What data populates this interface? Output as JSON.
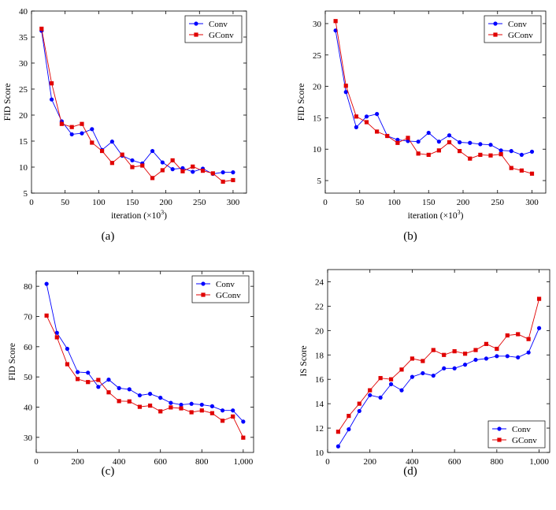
{
  "chart_data": [
    {
      "type": "line",
      "caption": "(a)",
      "xlabel": "iteration (×10",
      "xlabel_sup": "3",
      "xlabel_close": ")",
      "ylabel": "FID Score",
      "xlim": [
        0,
        320
      ],
      "ylim": [
        5,
        40
      ],
      "xticks": [
        0,
        50,
        100,
        150,
        200,
        250,
        300
      ],
      "xtick_labels": [
        "0",
        "50",
        "100",
        "150",
        "200",
        "250",
        "300"
      ],
      "yticks": [
        5,
        10,
        15,
        20,
        25,
        30,
        35,
        40
      ],
      "ytick_labels": [
        "5",
        "10",
        "15",
        "20",
        "25",
        "30",
        "35",
        "40"
      ],
      "legend_position": "top-right",
      "series": [
        {
          "name": "Conv",
          "color": "#0000ff",
          "marker": "circle",
          "x": [
            15,
            30,
            45,
            60,
            75,
            90,
            105,
            120,
            135,
            150,
            165,
            180,
            195,
            210,
            225,
            240,
            255,
            270,
            285,
            300
          ],
          "y": [
            36.2,
            23.0,
            18.8,
            16.3,
            16.5,
            17.3,
            13.3,
            14.9,
            12.2,
            11.3,
            10.7,
            13.1,
            10.9,
            9.6,
            9.8,
            9.1,
            9.7,
            8.7,
            9.0,
            9.0
          ]
        },
        {
          "name": "GConv",
          "color": "#e00000",
          "marker": "square",
          "x": [
            15,
            30,
            45,
            60,
            75,
            90,
            105,
            120,
            135,
            150,
            165,
            180,
            195,
            210,
            225,
            240,
            255,
            270,
            285,
            300
          ],
          "y": [
            36.6,
            26.1,
            18.3,
            17.7,
            18.3,
            14.7,
            13.1,
            10.8,
            12.4,
            10.0,
            10.3,
            7.9,
            9.4,
            11.3,
            9.2,
            10.1,
            9.3,
            8.8,
            7.2,
            7.5
          ]
        }
      ]
    },
    {
      "type": "line",
      "caption": "(b)",
      "xlabel": "iteration (×10",
      "xlabel_sup": "3",
      "xlabel_close": ")",
      "ylabel": "FID Score",
      "xlim": [
        0,
        320
      ],
      "ylim": [
        3,
        32
      ],
      "xticks": [
        0,
        50,
        100,
        150,
        200,
        250,
        300
      ],
      "xtick_labels": [
        "0",
        "50",
        "100",
        "150",
        "200",
        "250",
        "300"
      ],
      "yticks": [
        5,
        10,
        15,
        20,
        25,
        30
      ],
      "ytick_labels": [
        "5",
        "10",
        "15",
        "20",
        "25",
        "30"
      ],
      "legend_position": "top-right",
      "series": [
        {
          "name": "Conv",
          "color": "#0000ff",
          "marker": "circle",
          "x": [
            15,
            30,
            45,
            60,
            75,
            90,
            105,
            120,
            135,
            150,
            165,
            180,
            195,
            210,
            225,
            240,
            255,
            270,
            285,
            300
          ],
          "y": [
            28.9,
            19.1,
            13.5,
            15.2,
            15.6,
            12.1,
            11.5,
            11.3,
            11.2,
            12.6,
            11.2,
            12.2,
            11.1,
            11.0,
            10.8,
            10.7,
            9.8,
            9.7,
            9.1,
            9.6
          ]
        },
        {
          "name": "GConv",
          "color": "#e00000",
          "marker": "square",
          "x": [
            15,
            30,
            45,
            60,
            75,
            90,
            105,
            120,
            135,
            150,
            165,
            180,
            195,
            210,
            225,
            240,
            255,
            270,
            285,
            300
          ],
          "y": [
            30.4,
            20.1,
            15.2,
            14.3,
            12.8,
            12.1,
            11.0,
            11.8,
            9.3,
            9.1,
            9.8,
            11.1,
            9.7,
            8.5,
            9.1,
            9.0,
            9.2,
            7.0,
            6.6,
            6.1
          ]
        }
      ]
    },
    {
      "type": "line",
      "caption": "(c)",
      "xlabel": "iteration (×10",
      "xlabel_sup": "3",
      "xlabel_close": ")",
      "ylabel": "FID Score",
      "xlim": [
        0,
        1050
      ],
      "ylim": [
        25,
        85
      ],
      "xticks": [
        0,
        200,
        400,
        600,
        800,
        1000
      ],
      "xtick_labels": [
        "0",
        "200",
        "400",
        "600",
        "800",
        "1,000"
      ],
      "yticks": [
        30,
        40,
        50,
        60,
        70,
        80
      ],
      "ytick_labels": [
        "30",
        "40",
        "50",
        "60",
        "70",
        "80"
      ],
      "legend_position": "top-right",
      "series": [
        {
          "name": "Conv",
          "color": "#0000ff",
          "marker": "circle",
          "x": [
            50,
            100,
            150,
            200,
            250,
            300,
            350,
            400,
            450,
            500,
            550,
            600,
            650,
            700,
            750,
            800,
            850,
            900,
            950,
            1000
          ],
          "y": [
            80.8,
            64.6,
            59.3,
            51.6,
            51.4,
            46.7,
            49.1,
            46.3,
            45.9,
            43.9,
            44.4,
            43.1,
            41.4,
            40.8,
            41.1,
            40.8,
            40.3,
            38.9,
            38.9,
            35.2
          ]
        },
        {
          "name": "GConv",
          "color": "#e00000",
          "marker": "square",
          "x": [
            50,
            100,
            150,
            200,
            250,
            300,
            350,
            400,
            450,
            500,
            550,
            600,
            650,
            700,
            750,
            800,
            850,
            900,
            950,
            1000
          ],
          "y": [
            70.3,
            63.1,
            54.2,
            49.3,
            48.3,
            49.0,
            44.9,
            42.0,
            41.9,
            40.1,
            40.5,
            38.6,
            39.9,
            39.6,
            38.3,
            38.9,
            38.0,
            35.5,
            36.9,
            29.9
          ]
        }
      ]
    },
    {
      "type": "line",
      "caption": "(d)",
      "xlabel": "iteration (×10",
      "xlabel_sup": "3",
      "xlabel_close": ")",
      "ylabel": "IS Score",
      "xlim": [
        0,
        1050
      ],
      "ylim": [
        10,
        25
      ],
      "xticks": [
        0,
        200,
        400,
        600,
        800,
        1000
      ],
      "xtick_labels": [
        "0",
        "200",
        "400",
        "600",
        "800",
        "1,000"
      ],
      "yticks": [
        10,
        12,
        14,
        16,
        18,
        20,
        22,
        24
      ],
      "ytick_labels": [
        "10",
        "12",
        "14",
        "16",
        "18",
        "20",
        "22",
        "24"
      ],
      "legend_position": "bottom-right",
      "series": [
        {
          "name": "Conv",
          "color": "#0000ff",
          "marker": "circle",
          "x": [
            50,
            100,
            150,
            200,
            250,
            300,
            350,
            400,
            450,
            500,
            550,
            600,
            650,
            700,
            750,
            800,
            850,
            900,
            950,
            1000
          ],
          "y": [
            10.5,
            11.9,
            13.4,
            14.7,
            14.5,
            15.6,
            15.1,
            16.2,
            16.5,
            16.3,
            16.9,
            16.9,
            17.2,
            17.6,
            17.7,
            17.9,
            17.9,
            17.8,
            18.2,
            20.2
          ]
        },
        {
          "name": "GConv",
          "color": "#e00000",
          "marker": "square",
          "x": [
            50,
            100,
            150,
            200,
            250,
            300,
            350,
            400,
            450,
            500,
            550,
            600,
            650,
            700,
            750,
            800,
            850,
            900,
            950,
            1000
          ],
          "y": [
            11.7,
            13.0,
            14.0,
            15.1,
            16.1,
            16.0,
            16.8,
            17.7,
            17.5,
            18.4,
            18.0,
            18.3,
            18.1,
            18.4,
            18.9,
            18.5,
            19.6,
            19.7,
            19.3,
            22.6
          ]
        }
      ]
    }
  ]
}
